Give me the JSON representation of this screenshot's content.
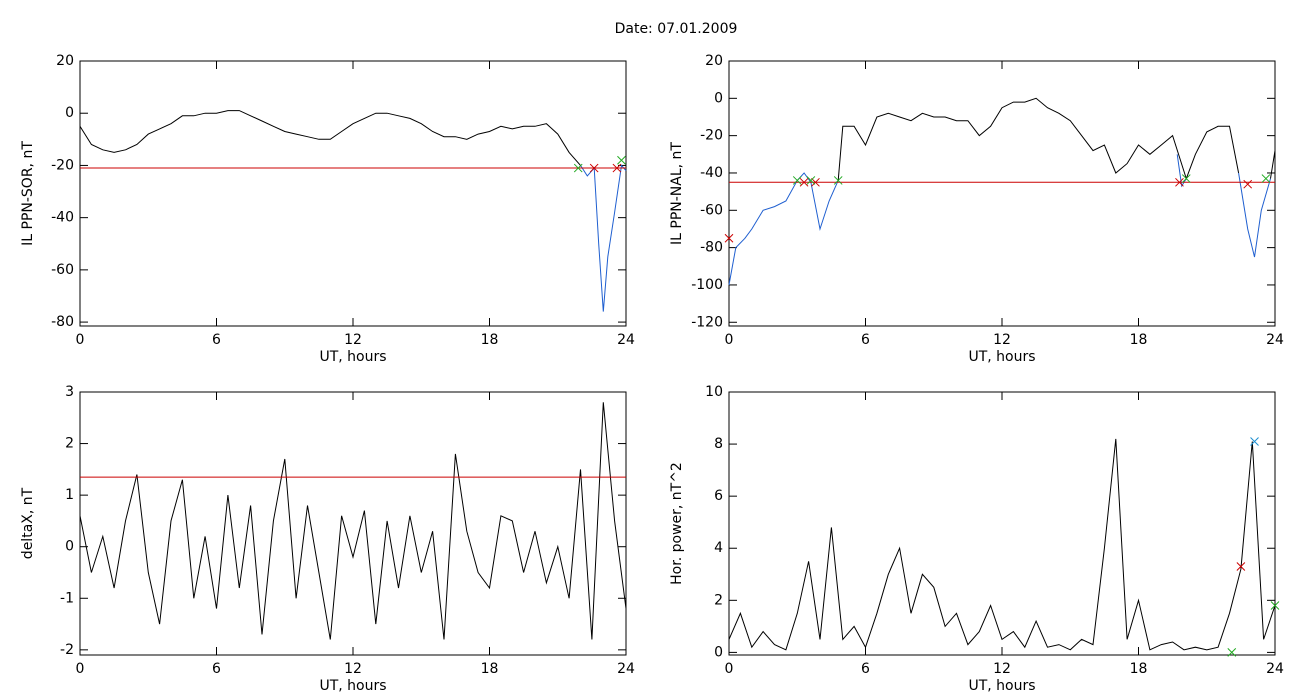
{
  "title": "Date:  07.01.2009",
  "chart_data": [
    {
      "type": "line",
      "xlabel": "UT, hours",
      "ylabel": "IL PPN-SOR, nT",
      "xlim": [
        0,
        24
      ],
      "xticks": [
        0,
        6,
        12,
        18,
        24
      ],
      "ylim": [
        -81.5,
        20
      ],
      "yticks": [
        20,
        0,
        -20,
        -40,
        -60,
        -80
      ],
      "series": [
        {
          "color": "#000000",
          "style": "line",
          "x": [
            0,
            0.5,
            1,
            1.5,
            2,
            2.5,
            3,
            3.5,
            4,
            4.5,
            5,
            5.5,
            6,
            6.5,
            7,
            7.5,
            8,
            8.5,
            9,
            9.5,
            10,
            10.5,
            11,
            11.5,
            12,
            12.5,
            13,
            13.5,
            14,
            14.5,
            15,
            15.5,
            16,
            16.5,
            17,
            17.5,
            18,
            18.5,
            19,
            19.5,
            20,
            20.5,
            21,
            21.5,
            22
          ],
          "values": [
            -5,
            -12,
            -14,
            -15,
            -14,
            -12,
            -8,
            -6,
            -4,
            -1,
            -1,
            0,
            0,
            1,
            1,
            -1,
            -3,
            -5,
            -7,
            -8,
            -9,
            -10,
            -10,
            -7,
            -4,
            -2,
            0,
            0,
            -1,
            -2,
            -4,
            -7,
            -9,
            -9,
            -10,
            -8,
            -7,
            -5,
            -6,
            -5,
            -5,
            -4,
            -8,
            -15,
            -20
          ]
        },
        {
          "color": "#1f5fd0",
          "style": "line",
          "x": [
            22,
            22.3,
            22.6,
            22.8,
            23,
            23.2,
            23.5,
            23.8,
            24
          ],
          "values": [
            -20,
            -24,
            -21,
            -50,
            -76,
            -55,
            -38,
            -20,
            -22
          ]
        },
        {
          "color": "#cc0000",
          "style": "line",
          "x": [
            0,
            24
          ],
          "values": [
            -21,
            -21
          ]
        },
        {
          "color": "#22aa22",
          "style": "marker",
          "x": [
            21.9,
            23.8
          ],
          "values": [
            -21,
            -18
          ]
        },
        {
          "color": "#cc0000",
          "style": "marker",
          "x": [
            22.6,
            23.6
          ],
          "values": [
            -21,
            -21
          ]
        }
      ]
    },
    {
      "type": "line",
      "xlabel": "UT, hours",
      "ylabel": "IL PPN-NAL, nT",
      "xlim": [
        0,
        24
      ],
      "xticks": [
        0,
        6,
        12,
        18,
        24
      ],
      "ylim": [
        -122,
        20
      ],
      "yticks": [
        20,
        0,
        -20,
        -40,
        -60,
        -80,
        -100,
        -120
      ],
      "series": [
        {
          "color": "#000000",
          "style": "line",
          "x": [
            4.8,
            5,
            5.5,
            6,
            6.5,
            7,
            7.5,
            8,
            8.5,
            9,
            9.5,
            10,
            10.5,
            11,
            11.5,
            12,
            12.5,
            13,
            13.5,
            14,
            14.5,
            15,
            15.5,
            16,
            16.5,
            17,
            17.5,
            18,
            18.5,
            19,
            19.5,
            20.1,
            20.5,
            21,
            21.5,
            22,
            22.4
          ],
          "values": [
            -44,
            -15,
            -15,
            -25,
            -10,
            -8,
            -10,
            -12,
            -8,
            -10,
            -10,
            -12,
            -12,
            -20,
            -15,
            -5,
            -2,
            -2,
            0,
            -5,
            -8,
            -12,
            -20,
            -28,
            -25,
            -40,
            -35,
            -25,
            -30,
            -25,
            -20,
            -43,
            -30,
            -18,
            -15,
            -15,
            -40
          ]
        },
        {
          "color": "#000000",
          "style": "line",
          "x": [
            23.8,
            24
          ],
          "values": [
            -43,
            -28
          ]
        },
        {
          "color": "#1f5fd0",
          "style": "line",
          "x": [
            0,
            0.3,
            0.7,
            1,
            1.5,
            2,
            2.5,
            3,
            3.3,
            3.6,
            4,
            4.4,
            4.8,
            4.9,
            19.7,
            19.9,
            20.1,
            20.2,
            22.4,
            22.8,
            23.1,
            23.4,
            23.8
          ],
          "values": [
            -100,
            -80,
            -75,
            -70,
            -60,
            -58,
            -55,
            -44,
            -40,
            -45,
            -70,
            -55,
            -44,
            null,
            -30,
            -47,
            -43,
            null,
            -40,
            -70,
            -85,
            -60,
            -43
          ]
        },
        {
          "color": "#cc0000",
          "style": "line",
          "x": [
            0,
            24
          ],
          "values": [
            -45,
            -45
          ]
        },
        {
          "color": "#cc0000",
          "style": "marker",
          "x": [
            0,
            3.3,
            3.8,
            19.8,
            22.8
          ],
          "values": [
            -75,
            -45,
            -45,
            -45,
            -46
          ]
        },
        {
          "color": "#22aa22",
          "style": "marker",
          "x": [
            3,
            3.6,
            4.8,
            20.1,
            23.6
          ],
          "values": [
            -44,
            -44,
            -44,
            -43,
            -43
          ]
        }
      ]
    },
    {
      "type": "line",
      "xlabel": "UT, hours",
      "ylabel": "deltaX, nT",
      "xlim": [
        0,
        24
      ],
      "xticks": [
        0,
        6,
        12,
        18,
        24
      ],
      "ylim": [
        -2.1,
        3
      ],
      "yticks": [
        3,
        2,
        1,
        0,
        -1,
        -2
      ],
      "series": [
        {
          "color": "#000000",
          "style": "line",
          "x": [
            0,
            0.5,
            1,
            1.5,
            2,
            2.5,
            3,
            3.5,
            4,
            4.5,
            5,
            5.5,
            6,
            6.5,
            7,
            7.5,
            8,
            8.5,
            9,
            9.5,
            10,
            10.5,
            11,
            11.5,
            12,
            12.5,
            13,
            13.5,
            14,
            14.5,
            15,
            15.5,
            16,
            16.5,
            17,
            17.5,
            18,
            18.5,
            19,
            19.5,
            20,
            20.5,
            21,
            21.5,
            22,
            22.5,
            23,
            23.5,
            24
          ],
          "values": [
            0.6,
            -0.5,
            0.2,
            -0.8,
            0.5,
            1.4,
            -0.5,
            -1.5,
            0.5,
            1.3,
            -1,
            0.2,
            -1.2,
            1,
            -0.8,
            0.8,
            -1.7,
            0.5,
            1.7,
            -1,
            0.8,
            -0.5,
            -1.8,
            0.6,
            -0.2,
            0.7,
            -1.5,
            0.5,
            -0.8,
            0.6,
            -0.5,
            0.3,
            -1.8,
            1.8,
            0.3,
            -0.5,
            -0.8,
            0.6,
            0.5,
            -0.5,
            0.3,
            -0.7,
            0,
            -1,
            1.5,
            -1.8,
            2.8,
            0.5,
            -1.2
          ]
        },
        {
          "color": "#cc0000",
          "style": "line",
          "x": [
            0,
            24
          ],
          "values": [
            1.35,
            1.35
          ]
        }
      ]
    },
    {
      "type": "line",
      "xlabel": "UT, hours",
      "ylabel": "Hor. power, nT^2",
      "xlim": [
        0,
        24
      ],
      "xticks": [
        0,
        6,
        12,
        18,
        24
      ],
      "ylim": [
        -0.1,
        10
      ],
      "yticks": [
        10,
        8,
        6,
        4,
        2,
        0
      ],
      "series": [
        {
          "color": "#000000",
          "style": "line",
          "x": [
            0,
            0.5,
            1,
            1.5,
            2,
            2.5,
            3,
            3.5,
            4,
            4.5,
            5,
            5.5,
            6,
            6.5,
            7,
            7.5,
            8,
            8.5,
            9,
            9.5,
            10,
            10.5,
            11,
            11.5,
            12,
            12.5,
            13,
            13.5,
            14,
            14.5,
            15,
            15.5,
            16,
            16.5,
            17,
            17.5,
            18,
            18.5,
            19,
            19.5,
            20,
            20.5,
            21,
            21.5,
            22,
            22.5,
            23,
            23.5,
            24
          ],
          "values": [
            0.5,
            1.5,
            0.2,
            0.8,
            0.3,
            0.1,
            1.5,
            3.5,
            0.5,
            4.8,
            0.5,
            1,
            0.2,
            1.5,
            3,
            4,
            1.5,
            3,
            2.5,
            1,
            1.5,
            0.3,
            0.8,
            1.8,
            0.5,
            0.8,
            0.2,
            1.2,
            0.2,
            0.3,
            0.1,
            0.5,
            0.3,
            4,
            8.2,
            0.5,
            2,
            0.1,
            0.3,
            0.4,
            0.1,
            0.2,
            0.1,
            0.2,
            1.5,
            3.2,
            8.1,
            0.5,
            1.8
          ]
        },
        {
          "color": "#1f8fd0",
          "style": "marker",
          "x": [
            23.1
          ],
          "values": [
            8.1
          ]
        },
        {
          "color": "#cc0000",
          "style": "marker",
          "x": [
            22.5
          ],
          "values": [
            3.3
          ]
        },
        {
          "color": "#22aa22",
          "style": "marker",
          "x": [
            22.1,
            24
          ],
          "values": [
            0,
            1.8
          ]
        }
      ]
    }
  ]
}
